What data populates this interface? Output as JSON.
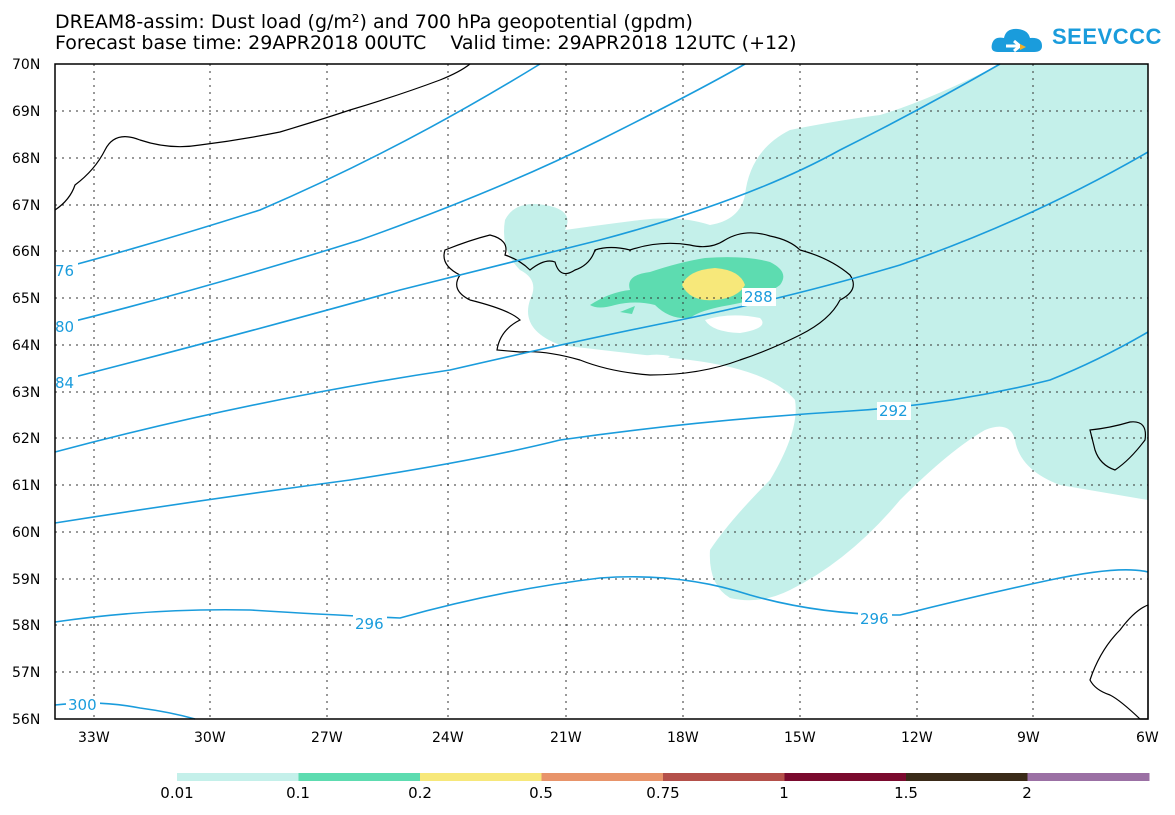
{
  "title": {
    "line1": "DREAM8-assim: Dust load (g/m²) and 700 hPa geopotential (gpdm)",
    "line2": "Forecast base time: 29APR2018 00UTC    Valid time: 29APR2018 12UTC (+12)"
  },
  "logo": {
    "text": "SEEVCCC",
    "icon": "cloud-icon",
    "color": "#1a9cdc"
  },
  "map": {
    "lon_range": [
      -34.2,
      -6
    ],
    "lat_range": [
      56,
      70
    ],
    "lat_labels": [
      "70N",
      "69N",
      "68N",
      "67N",
      "66N",
      "65N",
      "64N",
      "63N",
      "62N",
      "61N",
      "60N",
      "59N",
      "58N",
      "57N",
      "56N"
    ],
    "lon_labels": [
      "33W",
      "30W",
      "27W",
      "24W",
      "21W",
      "18W",
      "15W",
      "12W",
      "9W",
      "6W"
    ],
    "contour_color": "#1a9cdc",
    "contour_labels": [
      "76",
      "80",
      "84",
      "288",
      "292",
      "296",
      "296",
      "300"
    ]
  },
  "colorbar": {
    "labels": [
      "0.01",
      "0.1",
      "0.2",
      "0.5",
      "0.75",
      "1",
      "1.5",
      "2"
    ],
    "colors": [
      "#c4f0ea",
      "#5ddcb0",
      "#f7e87a",
      "#e8946a",
      "#b4504a",
      "#7a0a2e",
      "#3a2a18",
      "#9b70a4"
    ]
  }
}
